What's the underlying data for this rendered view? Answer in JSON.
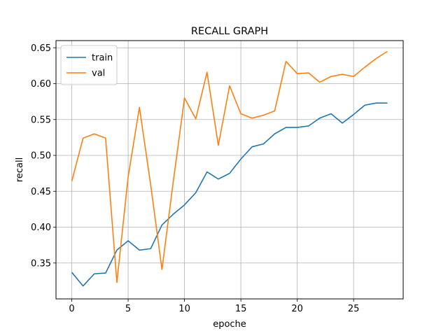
{
  "chart_data": {
    "type": "line",
    "title": "RECALL GRAPH",
    "xlabel": "epoche",
    "ylabel": "recall",
    "xlim": [
      -1.4,
      29.4
    ],
    "ylim": [
      0.3,
      0.66
    ],
    "xticks": [
      0,
      5,
      10,
      15,
      20,
      25
    ],
    "yticks": [
      0.35,
      0.4,
      0.45,
      0.5,
      0.55,
      0.6,
      0.65
    ],
    "xtick_labels": [
      "0",
      "5",
      "10",
      "15",
      "20",
      "25"
    ],
    "ytick_labels": [
      "0.35",
      "0.40",
      "0.45",
      "0.50",
      "0.55",
      "0.60",
      "0.65"
    ],
    "grid": true,
    "legend_position": "top-left",
    "x": [
      0,
      1,
      2,
      3,
      4,
      5,
      6,
      7,
      8,
      9,
      10,
      11,
      12,
      13,
      14,
      15,
      16,
      17,
      18,
      19,
      20,
      21,
      22,
      23,
      24,
      25,
      26,
      27,
      28
    ],
    "series": [
      {
        "name": "train",
        "color": "#1f77b4",
        "values": [
          0.337,
          0.318,
          0.335,
          0.336,
          0.368,
          0.381,
          0.368,
          0.37,
          0.403,
          0.418,
          0.431,
          0.448,
          0.477,
          0.467,
          0.475,
          0.495,
          0.512,
          0.516,
          0.53,
          0.539,
          0.539,
          0.541,
          0.552,
          0.558,
          0.545,
          0.557,
          0.57,
          0.573,
          0.573
        ]
      },
      {
        "name": "val",
        "color": "#ff7f0e",
        "values": [
          0.464,
          0.524,
          0.53,
          0.524,
          0.323,
          0.47,
          0.567,
          0.459,
          0.341,
          0.463,
          0.58,
          0.551,
          0.616,
          0.514,
          0.597,
          0.558,
          0.552,
          0.556,
          0.562,
          0.631,
          0.614,
          0.615,
          0.602,
          0.61,
          0.613,
          0.61,
          0.623,
          0.635,
          0.645
        ]
      }
    ]
  }
}
